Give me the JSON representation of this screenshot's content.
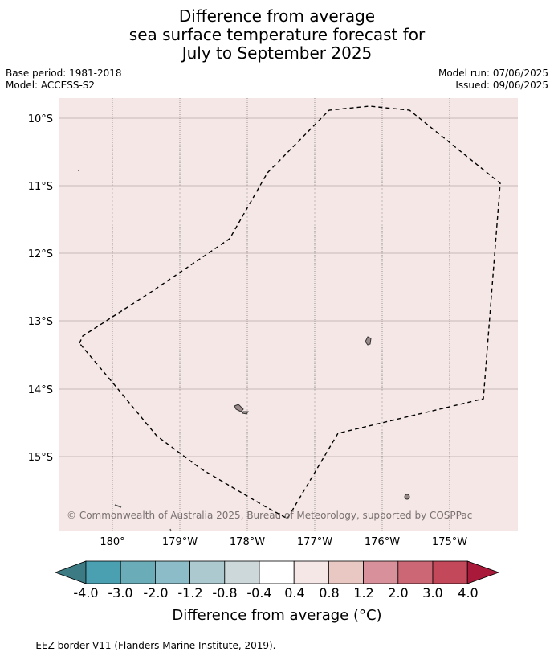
{
  "header": {
    "title_lines": [
      "Difference from average",
      "sea surface temperature forecast for",
      "July to September 2025"
    ],
    "base_period": "Base period: 1981-2018",
    "model": "Model: ACCESS-S2",
    "model_run": "Model run: 07/06/2025",
    "issued": "Issued: 09/06/2025"
  },
  "map": {
    "background_color": "#f4e7e6",
    "lat_labels": [
      "10°S",
      "11°S",
      "12°S",
      "13°S",
      "14°S",
      "15°S"
    ],
    "lon_labels": [
      "180°",
      "179°W",
      "178°W",
      "177°W",
      "176°W",
      "175°W"
    ],
    "copyright": "© Commonwealth of Australia 2025, Bureau of Meteorology, supported by COSPPac"
  },
  "colorbar": {
    "title": "Difference from average (°C)",
    "labels": [
      "-4.0",
      "-3.0",
      "-2.0",
      "-1.2",
      "-0.8",
      "-0.4",
      "0.4",
      "0.8",
      "1.2",
      "2.0",
      "3.0",
      "4.0"
    ],
    "colors": [
      "#3c7b84",
      "#4aa0b0",
      "#6aadb9",
      "#8bbcc7",
      "#abc9ce",
      "#cdd8da",
      "#ffffff",
      "#f4e7e6",
      "#e9c7c3",
      "#d8919a",
      "#cc6875",
      "#c2485a",
      "#a8193a"
    ]
  },
  "footnote": "--  --  -- EEZ border V11 (Flanders Marine Institute, 2019)."
}
